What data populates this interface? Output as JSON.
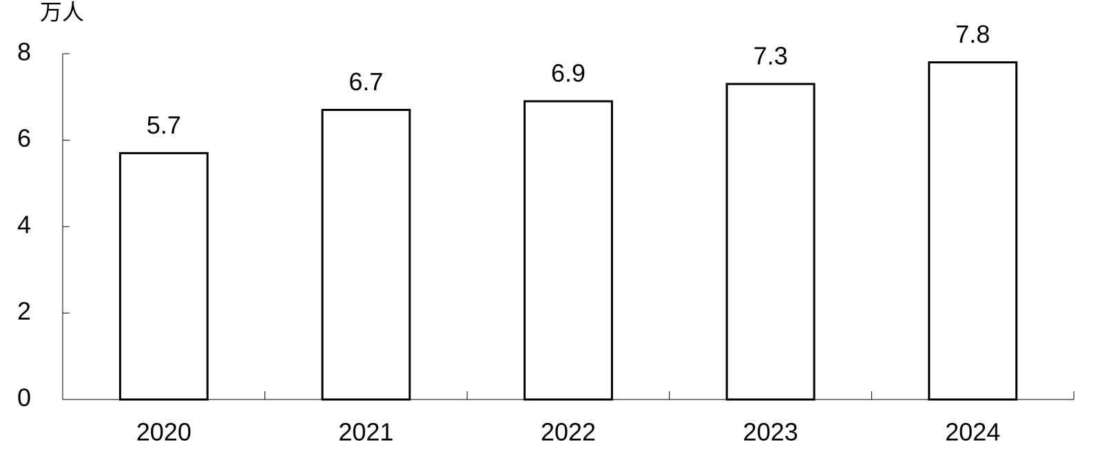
{
  "chart_data": {
    "type": "bar",
    "y_label": "万人",
    "categories": [
      "2020",
      "2021",
      "2022",
      "2023",
      "2024"
    ],
    "values": [
      5.7,
      6.7,
      6.9,
      7.3,
      7.8
    ],
    "color": "#ffffff",
    "ylim": [
      0,
      8
    ],
    "yticks": [
      0,
      2,
      4,
      6,
      8
    ]
  }
}
